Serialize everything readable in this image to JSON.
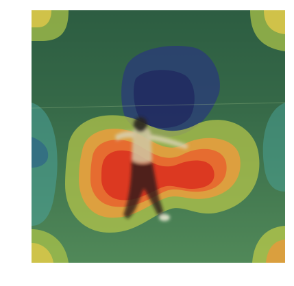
{
  "figure": {
    "kind": "attention-heatmap-overlay",
    "colormap": [
      "#2a1a6b",
      "#1f5f8a",
      "#2c8a7a",
      "#5fb35a",
      "#c9d34a",
      "#f0c34a",
      "#f08a3a",
      "#e03a2a",
      "#b81e1e"
    ],
    "colors": {
      "grass_light": "#6d8f55",
      "grass_dark": "#3b5a33",
      "trees": "#2c3b2a",
      "figure_shirt": "#d8d0b0",
      "figure_pants": "#221a1a"
    }
  }
}
